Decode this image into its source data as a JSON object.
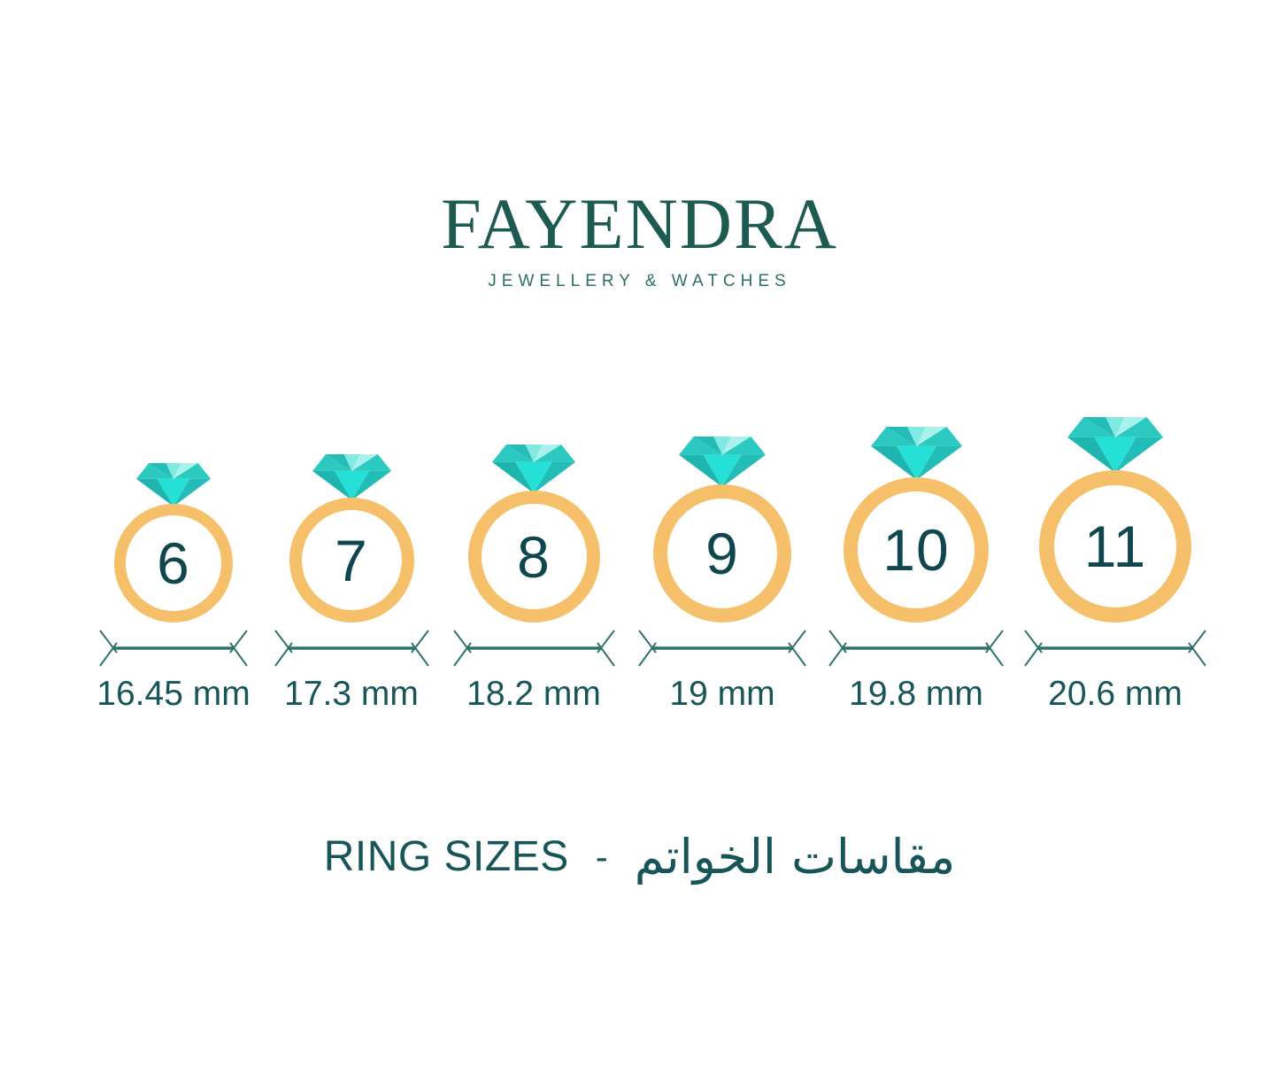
{
  "brand": {
    "name": "FAYENDRA",
    "tagline": "JEWELLERY & WATCHES"
  },
  "rings": [
    {
      "size": "6",
      "diameter_label": "16.45 mm"
    },
    {
      "size": "7",
      "diameter_label": "17.3 mm"
    },
    {
      "size": "8",
      "diameter_label": "18.2 mm"
    },
    {
      "size": "9",
      "diameter_label": "19 mm"
    },
    {
      "size": "10",
      "diameter_label": "19.8 mm"
    },
    {
      "size": "11",
      "diameter_label": "20.6 mm"
    }
  ],
  "footer": {
    "title_en": "RING SIZES",
    "separator": "-",
    "title_ar": "مقاسات الخواتم"
  },
  "colors": {
    "background": "#ffffff",
    "logo_green": "#1d5a52",
    "tagline_green": "#2f6e67",
    "band_gold": "#f6bf69",
    "number_teal": "#10474e",
    "label_teal": "#175558",
    "arrow_teal": "#2f736d",
    "diamond": {
      "crown_medium": "#2cc9c1",
      "crown_dark": "#24bcb6",
      "crown_light": "#7fe9e2",
      "crown_lighter": "#a9f1ec",
      "pavilion_dark_left": "#1fb5af",
      "pavilion_dark_right": "#22bdb7",
      "pavilion_bright": "#25e0d6"
    }
  }
}
